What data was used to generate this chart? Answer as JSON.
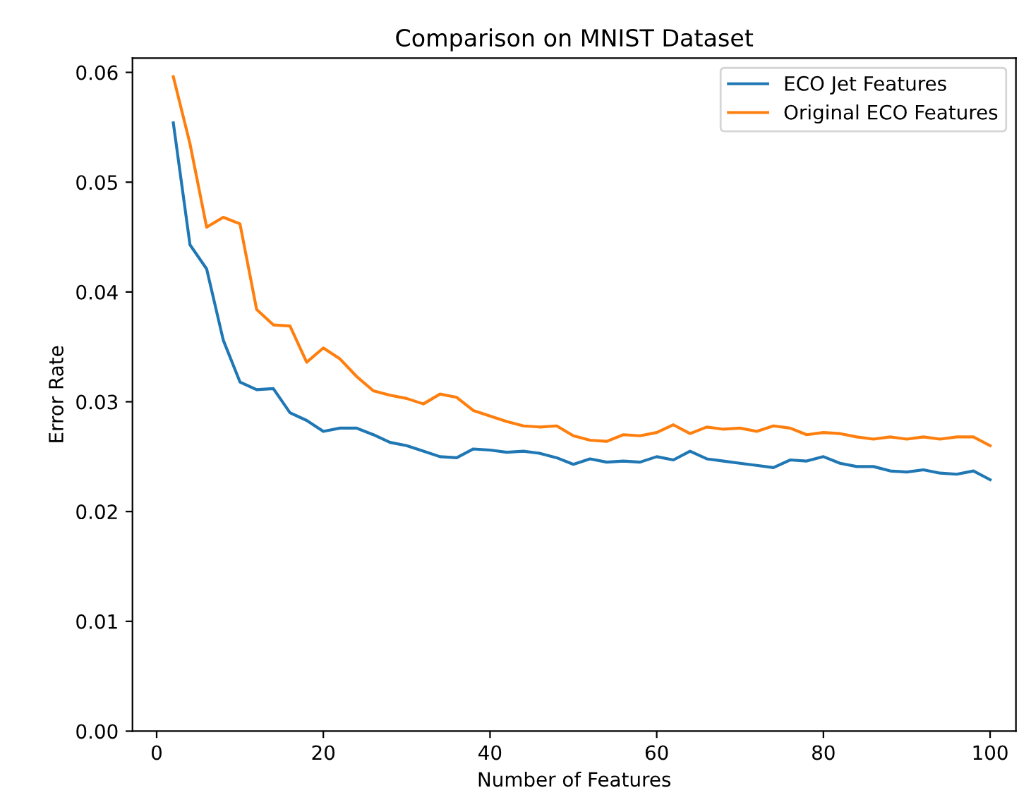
{
  "chart_data": {
    "type": "line",
    "title": "Comparison on MNIST Dataset",
    "xlabel": "Number of Features",
    "ylabel": "Error Rate",
    "x": [
      2,
      4,
      6,
      8,
      10,
      12,
      14,
      16,
      18,
      20,
      22,
      24,
      26,
      28,
      30,
      32,
      34,
      36,
      38,
      40,
      42,
      44,
      46,
      48,
      50,
      52,
      54,
      56,
      58,
      60,
      62,
      64,
      66,
      68,
      70,
      72,
      74,
      76,
      78,
      80,
      82,
      84,
      86,
      88,
      90,
      92,
      94,
      96,
      98,
      100
    ],
    "series": [
      {
        "name": "ECO Jet Features",
        "color": "#1f77b4",
        "values": [
          0.0554,
          0.0443,
          0.0421,
          0.0356,
          0.0318,
          0.0311,
          0.0312,
          0.029,
          0.0283,
          0.0273,
          0.0276,
          0.0276,
          0.027,
          0.0263,
          0.026,
          0.0255,
          0.025,
          0.0249,
          0.0257,
          0.0256,
          0.0254,
          0.0255,
          0.0253,
          0.0249,
          0.0243,
          0.0248,
          0.0245,
          0.0246,
          0.0245,
          0.025,
          0.0247,
          0.0255,
          0.0248,
          0.0246,
          0.0244,
          0.0242,
          0.024,
          0.0247,
          0.0246,
          0.025,
          0.0244,
          0.0241,
          0.0241,
          0.0237,
          0.0236,
          0.0238,
          0.0235,
          0.0234,
          0.0237,
          0.0229
        ]
      },
      {
        "name": "Original ECO Features",
        "color": "#ff7f0e",
        "values": [
          0.0596,
          0.0535,
          0.0459,
          0.0468,
          0.0462,
          0.0384,
          0.037,
          0.0369,
          0.0336,
          0.0349,
          0.0339,
          0.0323,
          0.031,
          0.0306,
          0.0303,
          0.0298,
          0.0307,
          0.0304,
          0.0292,
          0.0287,
          0.0282,
          0.0278,
          0.0277,
          0.0278,
          0.0269,
          0.0265,
          0.0264,
          0.027,
          0.0269,
          0.0272,
          0.0279,
          0.0271,
          0.0277,
          0.0275,
          0.0276,
          0.0273,
          0.0278,
          0.0276,
          0.027,
          0.0272,
          0.0271,
          0.0268,
          0.0266,
          0.0268,
          0.0266,
          0.0268,
          0.0266,
          0.0268,
          0.0268,
          0.026
        ]
      }
    ],
    "xlim": [
      -2.9,
      103.1
    ],
    "ylim": [
      0,
      0.0613
    ],
    "xticks": [
      0,
      20,
      40,
      60,
      80,
      100
    ],
    "yticks": [
      {
        "value": 0,
        "label": "0.00"
      },
      {
        "value": 0.01,
        "label": "0.01"
      },
      {
        "value": 0.02,
        "label": "0.02"
      },
      {
        "value": 0.03,
        "label": "0.03"
      },
      {
        "value": 0.04,
        "label": "0.04"
      },
      {
        "value": 0.05,
        "label": "0.05"
      },
      {
        "value": 0.06,
        "label": "0.06"
      }
    ],
    "legend": "top right",
    "grid": false,
    "marker": "none",
    "line_style": "solid"
  }
}
